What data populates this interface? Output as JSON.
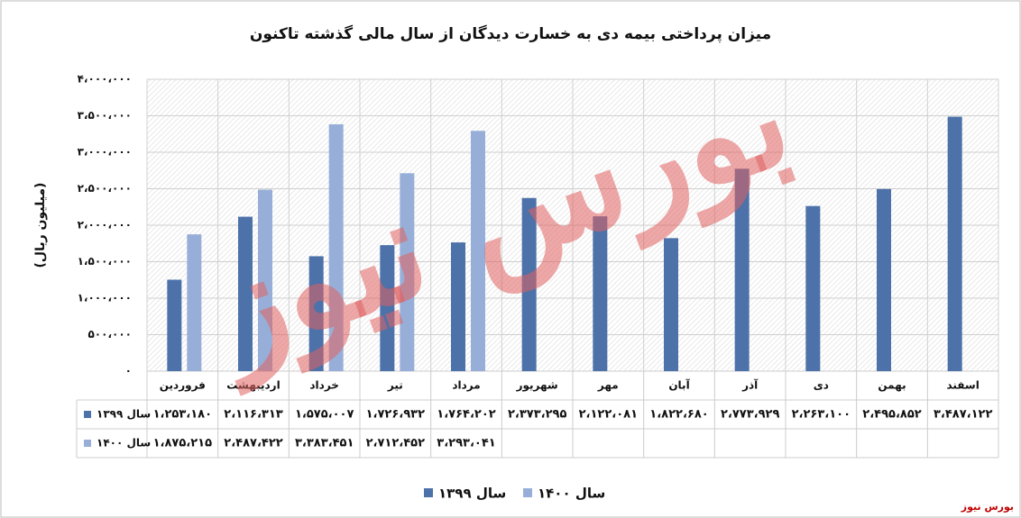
{
  "chart_data": {
    "type": "bar",
    "title": "میزان پرداختی بیمه دی به خسارت دیدگان از سال مالی گذشته تاکنون",
    "y_label": "(میلیون ریال)",
    "watermark": "بورس نیوز",
    "source": "بورس نیوز",
    "categories": [
      "فروردین",
      "اردیبهشت",
      "خرداد",
      "تیر",
      "مرداد",
      "شهریور",
      "مهر",
      "آبان",
      "آذر",
      "دی",
      "بهمن",
      "اسفند"
    ],
    "series": [
      {
        "name": "سال ۱۳۹۹",
        "color": "#4d71a9",
        "values": [
          1253180,
          2116313,
          1575007,
          1726932,
          1764202,
          2373295,
          2122081,
          1822680,
          2773929,
          2263100,
          2495852,
          3487122
        ],
        "value_labels": [
          "۱،۲۵۳،۱۸۰",
          "۲،۱۱۶،۳۱۳",
          "۱،۵۷۵،۰۰۷",
          "۱،۷۲۶،۹۳۲",
          "۱،۷۶۴،۲۰۲",
          "۲،۳۷۳،۲۹۵",
          "۲،۱۲۲،۰۸۱",
          "۱،۸۲۲،۶۸۰",
          "۲،۷۷۳،۹۲۹",
          "۲،۲۶۳،۱۰۰",
          "۲،۴۹۵،۸۵۲",
          "۳،۴۸۷،۱۲۲"
        ]
      },
      {
        "name": "سال ۱۴۰۰",
        "color": "#97afd8",
        "values": [
          1875215,
          2487422,
          3383451,
          2712452,
          3293041,
          null,
          null,
          null,
          null,
          null,
          null,
          null
        ],
        "value_labels": [
          "۱،۸۷۵،۲۱۵",
          "۲،۴۸۷،۴۲۲",
          "۳،۳۸۳،۴۵۱",
          "۲،۷۱۲،۴۵۲",
          "۳،۲۹۳،۰۴۱",
          null,
          null,
          null,
          null,
          null,
          null,
          null
        ]
      }
    ],
    "ylim": [
      0,
      4000000
    ],
    "yticks": [
      {
        "value": 0,
        "label": "۰"
      },
      {
        "value": 500000,
        "label": "۵۰۰،۰۰۰"
      },
      {
        "value": 1000000,
        "label": "۱،۰۰۰،۰۰۰"
      },
      {
        "value": 1500000,
        "label": "۱،۵۰۰،۰۰۰"
      },
      {
        "value": 2000000,
        "label": "۲،۰۰۰،۰۰۰"
      },
      {
        "value": 2500000,
        "label": "۲،۵۰۰،۰۰۰"
      },
      {
        "value": 3000000,
        "label": "۳،۰۰۰،۰۰۰"
      },
      {
        "value": 3500000,
        "label": "۳،۵۰۰،۰۰۰"
      },
      {
        "value": 4000000,
        "label": "۴،۰۰۰،۰۰۰"
      }
    ],
    "grid": true
  }
}
